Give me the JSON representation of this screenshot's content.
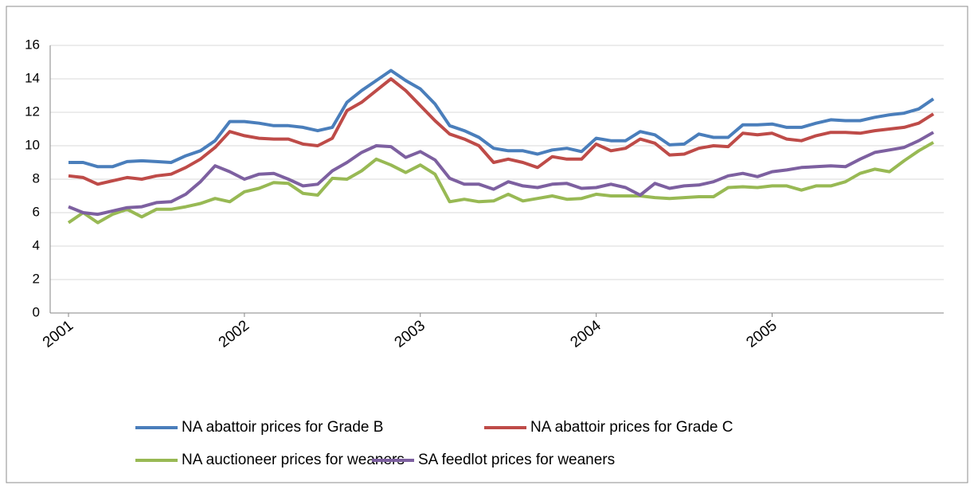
{
  "chart_data": {
    "type": "line",
    "categories": [
      "2001",
      null,
      null,
      null,
      null,
      null,
      null,
      null,
      null,
      null,
      null,
      null,
      "2002",
      null,
      null,
      null,
      null,
      null,
      null,
      null,
      null,
      null,
      null,
      null,
      "2003",
      null,
      null,
      null,
      null,
      null,
      null,
      null,
      null,
      null,
      null,
      null,
      "2004",
      null,
      null,
      null,
      null,
      null,
      null,
      null,
      null,
      null,
      null,
      null,
      "2005",
      null,
      null,
      null,
      null,
      null,
      null,
      null,
      null,
      null,
      null,
      null
    ],
    "series": [
      {
        "name": "NA abattoir prices for Grade B",
        "color": "#4a7ebb",
        "values": [
          9.0,
          9.0,
          8.75,
          8.75,
          9.05,
          9.1,
          9.05,
          9.0,
          9.4,
          9.7,
          10.3,
          11.45,
          11.45,
          11.35,
          11.2,
          11.2,
          11.1,
          10.9,
          11.1,
          12.6,
          13.3,
          13.9,
          14.5,
          13.9,
          13.4,
          12.5,
          11.2,
          10.9,
          10.5,
          9.85,
          9.7,
          9.7,
          9.5,
          9.75,
          9.85,
          9.65,
          10.45,
          10.3,
          10.3,
          10.85,
          10.65,
          10.05,
          10.1,
          10.7,
          10.5,
          10.5,
          11.25,
          11.25,
          11.3,
          11.1,
          11.1,
          11.35,
          11.55,
          11.5,
          11.5,
          11.7,
          11.85,
          11.95,
          12.2,
          12.8
        ]
      },
      {
        "name": "NA abattoir prices for Grade C",
        "color": "#be4b48",
        "values": [
          8.2,
          8.1,
          7.7,
          7.9,
          8.1,
          8.0,
          8.2,
          8.3,
          8.7,
          9.2,
          9.9,
          10.85,
          10.6,
          10.45,
          10.4,
          10.4,
          10.1,
          10.0,
          10.45,
          12.1,
          12.6,
          13.3,
          14.0,
          13.3,
          12.4,
          11.5,
          10.7,
          10.4,
          10.0,
          9.0,
          9.2,
          9.0,
          8.7,
          9.35,
          9.2,
          9.2,
          10.1,
          9.7,
          9.85,
          10.4,
          10.15,
          9.45,
          9.5,
          9.85,
          10.0,
          9.95,
          10.75,
          10.65,
          10.75,
          10.4,
          10.3,
          10.6,
          10.8,
          10.8,
          10.75,
          10.9,
          11.0,
          11.1,
          11.35,
          11.9
        ]
      },
      {
        "name": "NA auctioneer prices for weaners",
        "color": "#98b954",
        "values": [
          5.4,
          6.0,
          5.4,
          5.9,
          6.2,
          5.75,
          6.2,
          6.2,
          6.35,
          6.55,
          6.85,
          6.65,
          7.25,
          7.45,
          7.8,
          7.75,
          7.15,
          7.05,
          8.05,
          8.0,
          8.5,
          9.2,
          8.85,
          8.4,
          8.85,
          8.3,
          6.65,
          6.8,
          6.65,
          6.7,
          7.1,
          6.7,
          6.85,
          7.0,
          6.8,
          6.85,
          7.1,
          7.0,
          7.0,
          7.0,
          6.9,
          6.85,
          6.9,
          6.95,
          6.95,
          7.5,
          7.55,
          7.5,
          7.6,
          7.6,
          7.35,
          7.6,
          7.6,
          7.85,
          8.35,
          8.6,
          8.45,
          9.1,
          9.7,
          10.2
        ]
      },
      {
        "name": "SA feedlot prices for weaners",
        "color": "#7d60a0",
        "values": [
          6.35,
          6.0,
          5.9,
          6.1,
          6.3,
          6.35,
          6.6,
          6.65,
          7.1,
          7.85,
          8.8,
          8.45,
          8.0,
          8.3,
          8.35,
          8.0,
          7.6,
          7.7,
          8.5,
          9.0,
          9.6,
          10.0,
          9.95,
          9.3,
          9.65,
          9.15,
          8.05,
          7.7,
          7.7,
          7.4,
          7.85,
          7.6,
          7.5,
          7.7,
          7.75,
          7.45,
          7.5,
          7.7,
          7.5,
          7.05,
          7.75,
          7.45,
          7.6,
          7.65,
          7.85,
          8.2,
          8.35,
          8.15,
          8.45,
          8.55,
          8.7,
          8.75,
          8.8,
          8.75,
          9.2,
          9.6,
          9.75,
          9.9,
          10.3,
          10.8
        ]
      }
    ],
    "ylim": [
      0,
      16
    ],
    "yticks": [
      0,
      2,
      4,
      6,
      8,
      10,
      12,
      14,
      16
    ],
    "grid": true,
    "legend": "bottom"
  }
}
